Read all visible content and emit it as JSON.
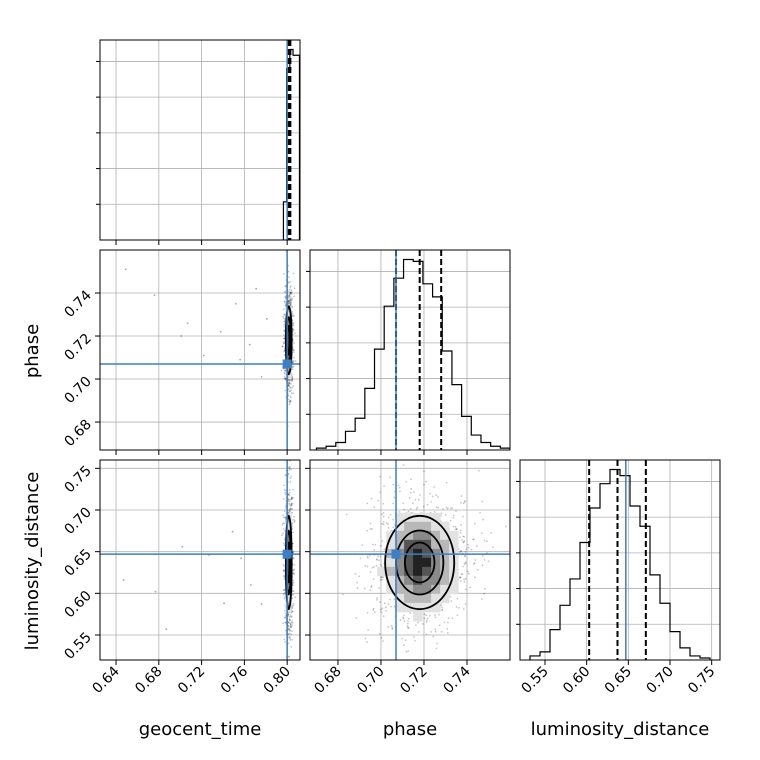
{
  "chart_data": {
    "type": "corner",
    "parameters": [
      "geocent_time",
      "phase",
      "luminosity_distance"
    ],
    "grid": true,
    "truth_color": "#3d7ec4",
    "truths": {
      "geocent_time": 0.8,
      "phase": 0.707,
      "luminosity_distance": 0.647
    },
    "ranges": {
      "geocent_time": [
        0.625,
        0.812
      ],
      "phase": [
        0.667,
        0.76
      ],
      "luminosity_distance": [
        0.52,
        0.76
      ]
    },
    "ticks": {
      "geocent_time": {
        "values": [
          0.64,
          0.68,
          0.72,
          0.76,
          0.8
        ],
        "labels": [
          "0.64",
          "0.68",
          "0.72",
          "0.76",
          "0.80"
        ]
      },
      "phase": {
        "values": [
          0.68,
          0.7,
          0.72,
          0.74
        ],
        "labels": [
          "0.68",
          "0.70",
          "0.72",
          "0.74"
        ]
      },
      "luminosity_distance": {
        "values": [
          0.55,
          0.6,
          0.65,
          0.7,
          0.75
        ],
        "labels": [
          "0.55",
          "0.60",
          "0.65",
          "0.70",
          "0.75"
        ]
      }
    },
    "quantiles": {
      "geocent_time": [
        0.801,
        0.802,
        0.803
      ],
      "phase": [
        0.707,
        0.718,
        0.728
      ],
      "luminosity_distance": [
        0.603,
        0.637,
        0.671
      ]
    },
    "histograms": {
      "geocent_time": {
        "edges": [
          0.7965,
          0.7995,
          0.8025,
          0.8055,
          0.8085,
          0.8115
        ],
        "counts": [
          2,
          9,
          10,
          9.7,
          9.7
        ]
      },
      "phase": {
        "edges": [
          0.67,
          0.6745,
          0.679,
          0.6835,
          0.688,
          0.6925,
          0.697,
          0.7015,
          0.706,
          0.7105,
          0.715,
          0.7195,
          0.724,
          0.7285,
          0.733,
          0.7375,
          0.742,
          0.7465,
          0.751,
          0.7555,
          0.76
        ],
        "counts": [
          0.2,
          0.4,
          0.8,
          2.0,
          3.4,
          6.6,
          10.8,
          15.4,
          18.4,
          20.4,
          20.2,
          17.8,
          16.4,
          10.6,
          7.0,
          3.6,
          1.6,
          0.8,
          0.4,
          0.2
        ]
      },
      "luminosity_distance": {
        "edges": [
          0.532,
          0.544,
          0.556,
          0.568,
          0.58,
          0.592,
          0.604,
          0.616,
          0.628,
          0.64,
          0.652,
          0.664,
          0.676,
          0.688,
          0.7,
          0.712,
          0.724,
          0.736,
          0.748
        ],
        "counts": [
          0.2,
          0.4,
          1.5,
          2.7,
          4.0,
          5.8,
          7.5,
          8.7,
          9.4,
          9.1,
          7.6,
          6.6,
          4.2,
          2.8,
          1.4,
          0.6,
          0.2,
          0.1
        ]
      }
    },
    "density_2d": {
      "geocent_time__phase": {
        "center": [
          0.8015,
          0.718
        ],
        "sd": [
          0.0015,
          0.009
        ]
      },
      "geocent_time__luminosity_distance": {
        "center": [
          0.8015,
          0.637
        ],
        "sd": [
          0.0015,
          0.032
        ]
      },
      "phase__luminosity_distance": {
        "center": [
          0.718,
          0.637
        ],
        "sd": [
          0.009,
          0.032
        ]
      }
    },
    "outliers": {
      "geocent_time__phase": [
        [
          0.649,
          0.751
        ],
        [
          0.676,
          0.739
        ],
        [
          0.701,
          0.72
        ],
        [
          0.707,
          0.726
        ],
        [
          0.722,
          0.711
        ],
        [
          0.738,
          0.722
        ],
        [
          0.752,
          0.735
        ],
        [
          0.756,
          0.709
        ],
        [
          0.765,
          0.716
        ],
        [
          0.771,
          0.742
        ],
        [
          0.776,
          0.701
        ],
        [
          0.781,
          0.728
        ]
      ],
      "geocent_time__luminosity_distance": [
        [
          0.647,
          0.616
        ],
        [
          0.677,
          0.602
        ],
        [
          0.687,
          0.557
        ],
        [
          0.702,
          0.656
        ],
        [
          0.727,
          0.646
        ],
        [
          0.741,
          0.588
        ],
        [
          0.749,
          0.674
        ],
        [
          0.757,
          0.642
        ],
        [
          0.766,
          0.61
        ],
        [
          0.776,
          0.587
        ]
      ]
    },
    "labels": {
      "geocent_time": "geocent_time",
      "phase": "phase",
      "luminosity_distance": "luminosity_distance"
    }
  }
}
